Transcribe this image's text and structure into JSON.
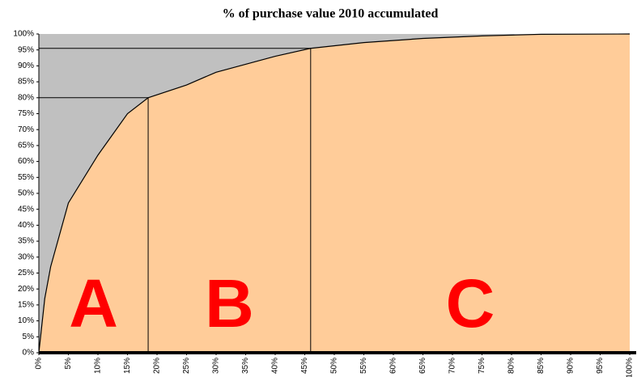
{
  "chart_data": {
    "type": "area",
    "title": "% of purchase value 2010 accumulated",
    "x": [
      0,
      1,
      2,
      5,
      10,
      15,
      18.5,
      25,
      30,
      35,
      40,
      46,
      55,
      65,
      75,
      85,
      100
    ],
    "values": [
      0,
      17,
      27,
      47,
      62,
      75,
      80,
      84,
      88,
      90.5,
      93,
      95.5,
      97.3,
      98.6,
      99.4,
      99.9,
      100
    ],
    "color": "#ffcc99",
    "line_color": "#000000",
    "background": "#c0c0c0",
    "xlim": [
      0,
      100
    ],
    "ylim": [
      0,
      100
    ],
    "xticks": [
      {
        "value": 0,
        "label": "0%"
      },
      {
        "value": 5,
        "label": "5%"
      },
      {
        "value": 10,
        "label": "10%"
      },
      {
        "value": 15,
        "label": "15%"
      },
      {
        "value": 20,
        "label": "20%"
      },
      {
        "value": 25,
        "label": "25%"
      },
      {
        "value": 30,
        "label": "30%"
      },
      {
        "value": 35,
        "label": "35%"
      },
      {
        "value": 40,
        "label": "40%"
      },
      {
        "value": 45,
        "label": "45%"
      },
      {
        "value": 50,
        "label": "50%"
      },
      {
        "value": 55,
        "label": "55%"
      },
      {
        "value": 60,
        "label": "60%"
      },
      {
        "value": 65,
        "label": "65%"
      },
      {
        "value": 70,
        "label": "70%"
      },
      {
        "value": 75,
        "label": "75%"
      },
      {
        "value": 80,
        "label": "80%"
      },
      {
        "value": 85,
        "label": "85%"
      },
      {
        "value": 90,
        "label": "90%"
      },
      {
        "value": 95,
        "label": "95%"
      },
      {
        "value": 100,
        "label": "100%"
      }
    ],
    "yticks": [
      {
        "value": 0,
        "label": "0%"
      },
      {
        "value": 5,
        "label": "5%"
      },
      {
        "value": 10,
        "label": "10%"
      },
      {
        "value": 15,
        "label": "15%"
      },
      {
        "value": 20,
        "label": "20%"
      },
      {
        "value": 25,
        "label": "25%"
      },
      {
        "value": 30,
        "label": "30%"
      },
      {
        "value": 35,
        "label": "35%"
      },
      {
        "value": 40,
        "label": "40%"
      },
      {
        "value": 45,
        "label": "45%"
      },
      {
        "value": 50,
        "label": "50%"
      },
      {
        "value": 55,
        "label": "55%"
      },
      {
        "value": 60,
        "label": "60%"
      },
      {
        "value": 65,
        "label": "65%"
      },
      {
        "value": 70,
        "label": "70%"
      },
      {
        "value": 75,
        "label": "75%"
      },
      {
        "value": 80,
        "label": "80%"
      },
      {
        "value": 85,
        "label": "85%"
      },
      {
        "value": 90,
        "label": "90%"
      },
      {
        "value": 95,
        "label": "95%"
      },
      {
        "value": 100,
        "label": "100%"
      }
    ],
    "thresholds": [
      {
        "x": 18.5,
        "y": 80
      },
      {
        "x": 46,
        "y": 95.5
      }
    ],
    "zones": [
      "A",
      "B",
      "C"
    ],
    "zone_color": "#ff0000"
  }
}
